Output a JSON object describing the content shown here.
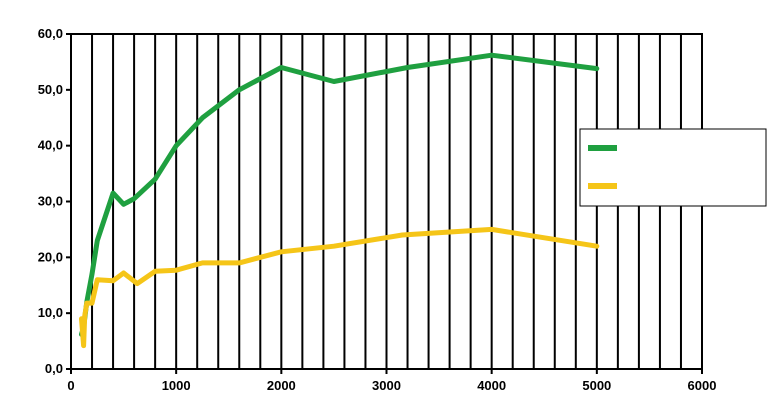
{
  "chart_data": {
    "type": "line",
    "title": "",
    "xlabel": "",
    "ylabel": "",
    "xlim": [
      0,
      6000
    ],
    "ylim": [
      0,
      60
    ],
    "x_ticks": [
      0,
      1000,
      2000,
      3000,
      4000,
      5000,
      6000
    ],
    "x_tick_labels": [
      "0",
      "1000",
      "2000",
      "3000",
      "4000",
      "5000",
      "6000"
    ],
    "y_ticks": [
      0,
      10,
      20,
      30,
      40,
      50,
      60
    ],
    "y_tick_labels": [
      "0,0",
      "10,0",
      "20,0",
      "30,0",
      "40,0",
      "50,0",
      "60,0"
    ],
    "grid": "vertical",
    "legend_position": "right",
    "series": [
      {
        "color": "#1fa040",
        "x": [
          100,
          120,
          150,
          200,
          250,
          400,
          500,
          600,
          800,
          1000,
          1250,
          1600,
          2000,
          2500,
          3200,
          4000,
          5000
        ],
        "y": [
          6.2,
          7.5,
          12.0,
          17.0,
          23.0,
          31.5,
          29.5,
          30.5,
          34.0,
          40.0,
          45.0,
          50.0,
          54.0,
          51.5,
          54.0,
          56.2,
          53.8
        ]
      },
      {
        "color": "#f5c518",
        "x": [
          100,
          120,
          130,
          150,
          200,
          250,
          400,
          500,
          630,
          800,
          1000,
          1250,
          1600,
          2000,
          2500,
          3150,
          4000,
          5000
        ],
        "y": [
          9.0,
          4.2,
          9.5,
          11.8,
          11.8,
          16.0,
          15.8,
          17.2,
          15.3,
          17.5,
          17.7,
          19.0,
          19.0,
          21.0,
          22.0,
          24.0,
          25.0,
          22.0
        ]
      }
    ]
  }
}
